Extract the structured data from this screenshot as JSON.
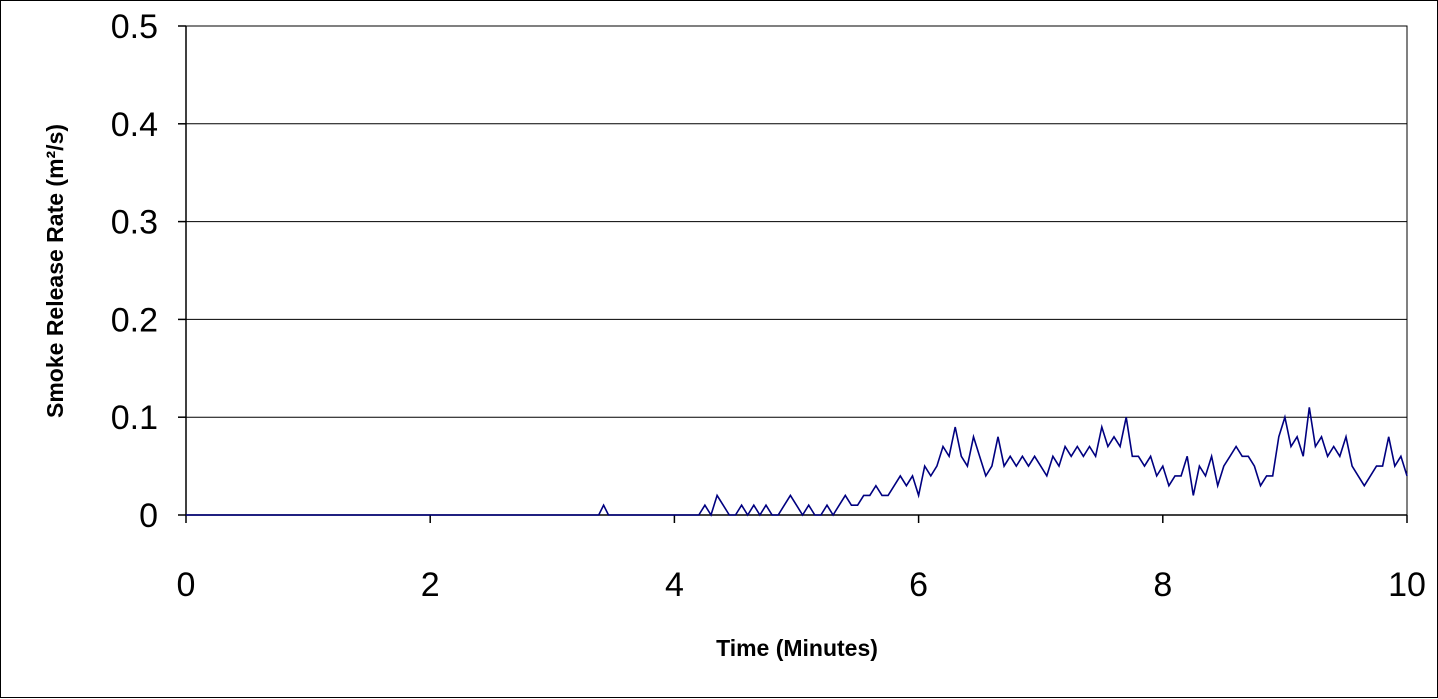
{
  "chart_data": {
    "type": "line",
    "title": "",
    "xlabel": "Time (Minutes)",
    "ylabel": "Smoke Release Rate (m²/s)",
    "xlim": [
      0,
      10
    ],
    "ylim": [
      0,
      0.5
    ],
    "x_ticks": [
      0,
      2,
      4,
      6,
      8,
      10
    ],
    "x_tick_labels": [
      "0",
      "2",
      "4",
      "6",
      "8",
      "10"
    ],
    "y_ticks": [
      0,
      0.1,
      0.2,
      0.3,
      0.4,
      0.5
    ],
    "y_tick_labels": [
      "0",
      "0.1",
      "0.2",
      "0.3",
      "0.4",
      "0.5"
    ],
    "grid": "horizontal",
    "legend": "none",
    "series": [
      {
        "color": "#000080",
        "x": [
          0,
          3.38,
          3.42,
          3.46,
          4.2,
          4.25,
          4.3,
          4.35,
          4.4,
          4.45,
          4.5,
          4.55,
          4.6,
          4.65,
          4.7,
          4.75,
          4.8,
          4.85,
          4.9,
          4.95,
          5.0,
          5.05,
          5.1,
          5.15,
          5.2,
          5.25,
          5.3,
          5.35,
          5.4,
          5.45,
          5.5,
          5.55,
          5.6,
          5.65,
          5.7,
          5.75,
          5.8,
          5.85,
          5.9,
          5.95,
          6.0,
          6.05,
          6.1,
          6.15,
          6.2,
          6.25,
          6.3,
          6.35,
          6.4,
          6.45,
          6.5,
          6.55,
          6.6,
          6.65,
          6.7,
          6.75,
          6.8,
          6.85,
          6.9,
          6.95,
          7.0,
          7.05,
          7.1,
          7.15,
          7.2,
          7.25,
          7.3,
          7.35,
          7.4,
          7.45,
          7.5,
          7.55,
          7.6,
          7.65,
          7.7,
          7.75,
          7.8,
          7.85,
          7.9,
          7.95,
          8.0,
          8.05,
          8.1,
          8.15,
          8.2,
          8.25,
          8.3,
          8.35,
          8.4,
          8.45,
          8.5,
          8.55,
          8.6,
          8.65,
          8.7,
          8.75,
          8.8,
          8.85,
          8.9,
          8.95,
          9.0,
          9.05,
          9.1,
          9.15,
          9.2,
          9.25,
          9.3,
          9.35,
          9.4,
          9.45,
          9.5,
          9.55,
          9.6,
          9.65,
          9.7,
          9.75,
          9.8,
          9.85,
          9.9,
          9.95,
          10.0
        ],
        "y": [
          0,
          0,
          0.01,
          0,
          0,
          0.01,
          0,
          0.02,
          0.01,
          0,
          0,
          0.01,
          0,
          0.01,
          0,
          0.01,
          0,
          0,
          0.01,
          0.02,
          0.01,
          0,
          0.01,
          0,
          0,
          0.01,
          0,
          0.01,
          0.02,
          0.01,
          0.01,
          0.02,
          0.02,
          0.03,
          0.02,
          0.02,
          0.03,
          0.04,
          0.03,
          0.04,
          0.02,
          0.05,
          0.04,
          0.05,
          0.07,
          0.06,
          0.09,
          0.06,
          0.05,
          0.08,
          0.06,
          0.04,
          0.05,
          0.08,
          0.05,
          0.06,
          0.05,
          0.06,
          0.05,
          0.06,
          0.05,
          0.04,
          0.06,
          0.05,
          0.07,
          0.06,
          0.07,
          0.06,
          0.07,
          0.06,
          0.09,
          0.07,
          0.08,
          0.07,
          0.1,
          0.06,
          0.06,
          0.05,
          0.06,
          0.04,
          0.05,
          0.03,
          0.04,
          0.04,
          0.06,
          0.02,
          0.05,
          0.04,
          0.06,
          0.03,
          0.05,
          0.06,
          0.07,
          0.06,
          0.06,
          0.05,
          0.03,
          0.04,
          0.04,
          0.08,
          0.1,
          0.07,
          0.08,
          0.06,
          0.11,
          0.07,
          0.08,
          0.06,
          0.07,
          0.06,
          0.08,
          0.05,
          0.04,
          0.03,
          0.04,
          0.05,
          0.05,
          0.08,
          0.05,
          0.06,
          0.04
        ]
      }
    ]
  }
}
